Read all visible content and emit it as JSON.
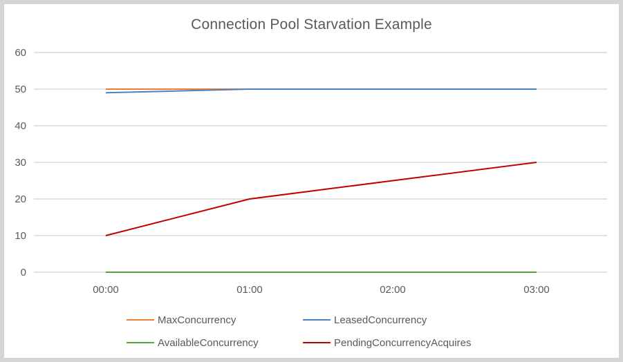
{
  "frame": {
    "border_color": "#d5d5d5",
    "background": "#ffffff"
  },
  "chart_data": {
    "type": "line",
    "title": "Connection Pool Starvation Example",
    "xlabel": "",
    "ylabel": "",
    "x_categories": [
      "00:00",
      "01:00",
      "02:00",
      "03:00"
    ],
    "y_ticks": [
      0,
      10,
      20,
      30,
      40,
      50,
      60
    ],
    "ylim": [
      0,
      60
    ],
    "grid": "horizontal-only",
    "gridline_color": "#d9d9d9",
    "text_color": "#595959",
    "legend_position": "bottom",
    "series": [
      {
        "name": "MaxConcurrency",
        "color": "#ed7d31",
        "values": [
          50,
          50,
          50,
          50
        ]
      },
      {
        "name": "LeasedConcurrency",
        "color": "#4e81bd",
        "values": [
          49,
          50,
          50,
          50
        ]
      },
      {
        "name": "AvailableConcurrency",
        "color": "#56a036",
        "values": [
          0,
          0,
          0,
          0
        ]
      },
      {
        "name": "PendingConcurrencyAcquires",
        "color": "#c00000",
        "values": [
          10,
          20,
          25,
          30
        ]
      }
    ]
  }
}
